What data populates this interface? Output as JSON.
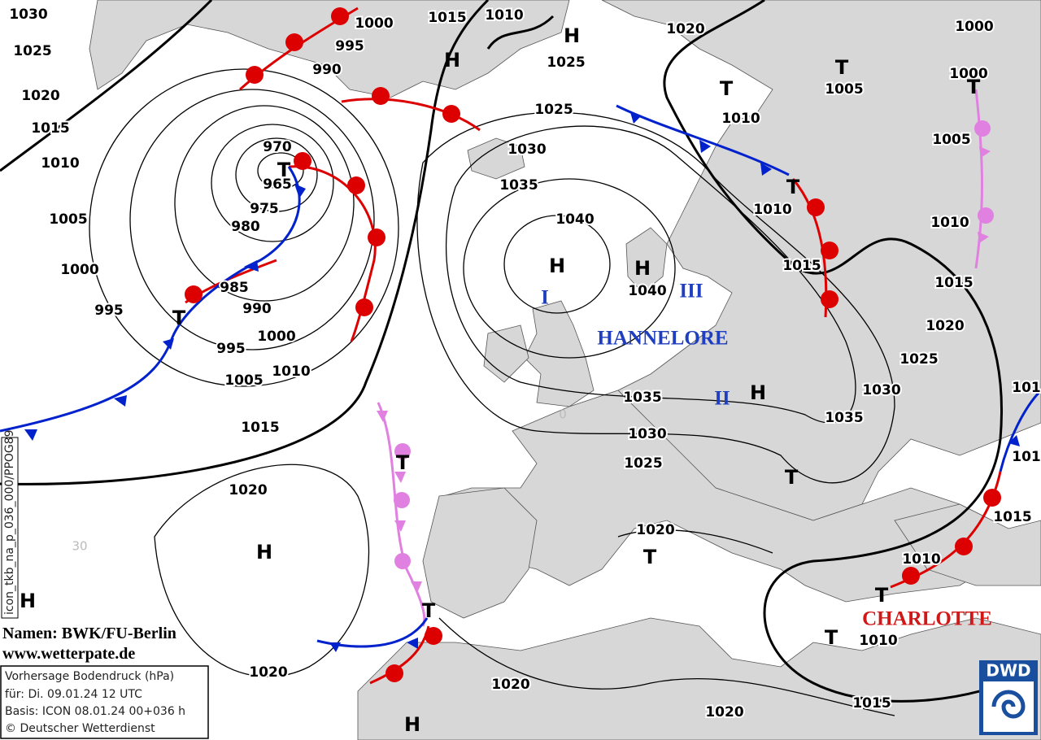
{
  "isobar_labels": [
    1030,
    1025,
    1020,
    1015,
    1010,
    1005,
    1000,
    995,
    980,
    975,
    965,
    970,
    985,
    990,
    995,
    1000,
    1005,
    1010,
    1015,
    1020,
    1020,
    990,
    995,
    1000,
    1015,
    1010,
    1025,
    1020,
    1000,
    1000,
    1005,
    1010,
    1005,
    1010,
    1010,
    1015,
    1015,
    1020,
    1025,
    1030,
    1035,
    1025,
    1030,
    1035,
    1040,
    1040,
    1035,
    1030,
    1025,
    1020,
    1010,
    1010,
    1015,
    1015,
    1020,
    1020,
    101,
    101
  ],
  "pressure_centers": [
    "H",
    "H",
    "H",
    "H",
    "H",
    "H",
    "H",
    "H",
    "T",
    "T",
    "T",
    "T",
    "T",
    "T",
    "T",
    "T",
    "T",
    "T",
    "T",
    "T"
  ],
  "storm_names": [
    "HANNELORE",
    "CHARLOTTE"
  ],
  "markers": [
    "I",
    "II",
    "III"
  ],
  "credits": {
    "names": "Namen: BWK/FU-Berlin",
    "website": "www.wetterpate.de"
  },
  "info_box": [
    "Vorhersage Bodendruck (hPa)",
    "für:  Di. 09.01.24  12 UTC",
    "Basis: ICON  08.01.24 00+036 h",
    "© Deutscher Wetterdienst"
  ],
  "logo": "DWD",
  "product_code": "icon_tkb_na_p_036_000/PPOG89",
  "graticule_labels": [
    "30",
    "0"
  ]
}
